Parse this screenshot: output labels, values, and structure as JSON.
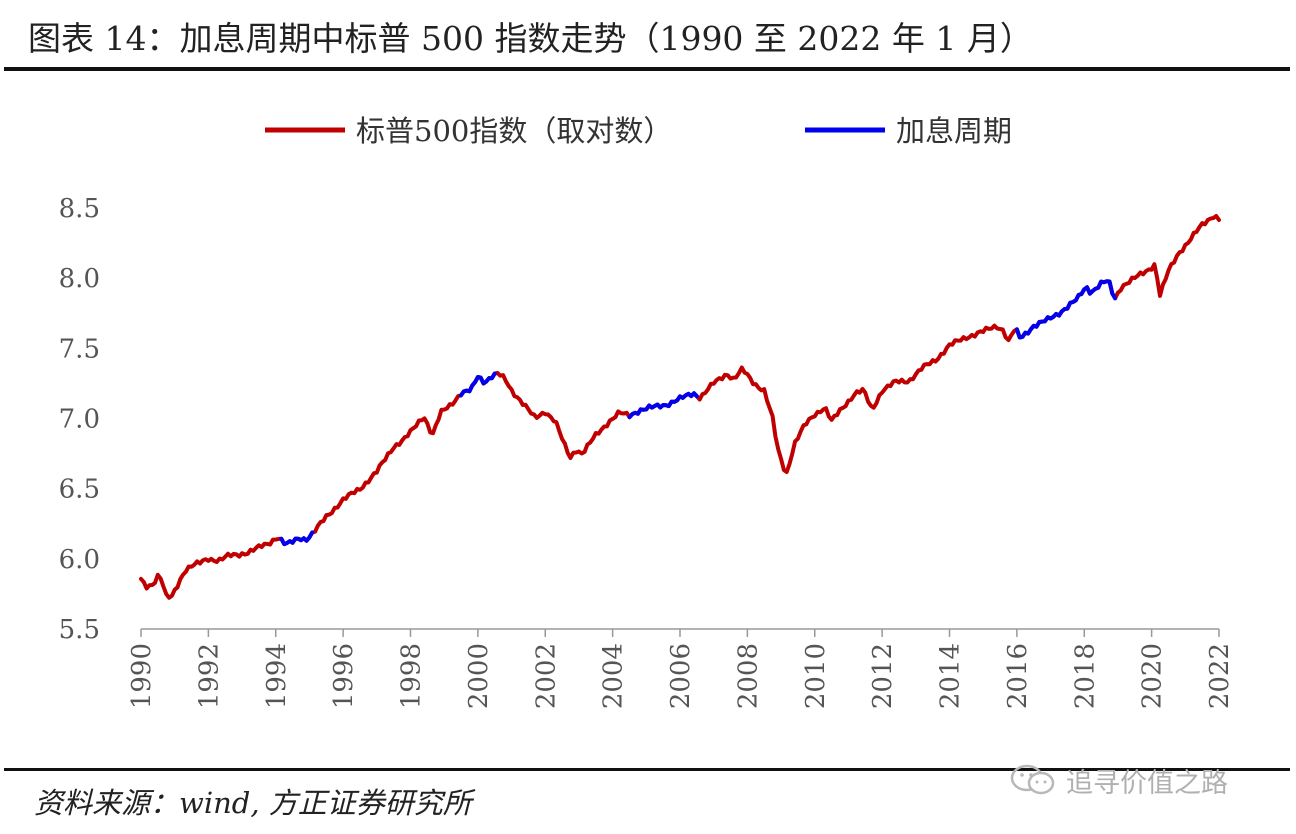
{
  "title": "图表 14：加息周期中标普 500 指数走势（1990 至 2022 年 1 月）",
  "source": "资料来源：wind, 方正证券研究所",
  "watermark": "追寻价值之路",
  "chart_data": {
    "type": "line",
    "legend_position": "top-center",
    "grid": false,
    "ylim": [
      5.5,
      8.5
    ],
    "yticks": [
      "5.5",
      "6.0",
      "6.5",
      "7.0",
      "7.5",
      "8.0",
      "8.5"
    ],
    "xlim": [
      1990,
      2022
    ],
    "xticks": [
      "1990",
      "1992",
      "1994",
      "1996",
      "1998",
      "2000",
      "2002",
      "2004",
      "2006",
      "2008",
      "2010",
      "2012",
      "2014",
      "2016",
      "2018",
      "2020",
      "2022"
    ],
    "series": [
      {
        "name": "标普500指数（取对数）",
        "color": "#c00000"
      },
      {
        "name": "加息周期",
        "color": "#0000ee"
      }
    ],
    "hike_periods": [
      [
        1994.1,
        1995.1
      ],
      [
        1999.5,
        2000.5
      ],
      [
        2004.5,
        2006.5
      ],
      [
        2015.95,
        2018.95
      ]
    ],
    "points": [
      [
        1990.0,
        5.85
      ],
      [
        1990.15,
        5.8
      ],
      [
        1990.35,
        5.82
      ],
      [
        1990.5,
        5.88
      ],
      [
        1990.6,
        5.86
      ],
      [
        1990.75,
        5.73
      ],
      [
        1990.9,
        5.72
      ],
      [
        1991.1,
        5.82
      ],
      [
        1991.3,
        5.92
      ],
      [
        1991.5,
        5.95
      ],
      [
        1991.75,
        5.97
      ],
      [
        1992.0,
        6.0
      ],
      [
        1992.3,
        5.99
      ],
      [
        1992.6,
        6.02
      ],
      [
        1992.9,
        6.03
      ],
      [
        1993.2,
        6.05
      ],
      [
        1993.5,
        6.08
      ],
      [
        1993.8,
        6.11
      ],
      [
        1994.05,
        6.16
      ],
      [
        1994.3,
        6.1
      ],
      [
        1994.5,
        6.12
      ],
      [
        1994.7,
        6.15
      ],
      [
        1994.9,
        6.14
      ],
      [
        1995.1,
        6.18
      ],
      [
        1995.5,
        6.3
      ],
      [
        1996.0,
        6.42
      ],
      [
        1996.5,
        6.5
      ],
      [
        1997.0,
        6.62
      ],
      [
        1997.5,
        6.8
      ],
      [
        1997.8,
        6.85
      ],
      [
        1998.0,
        6.9
      ],
      [
        1998.4,
        7.02
      ],
      [
        1998.65,
        6.88
      ],
      [
        1998.9,
        7.04
      ],
      [
        1999.2,
        7.1
      ],
      [
        1999.5,
        7.18
      ],
      [
        1999.8,
        7.2
      ],
      [
        2000.0,
        7.3
      ],
      [
        2000.2,
        7.26
      ],
      [
        2000.4,
        7.3
      ],
      [
        2000.6,
        7.32
      ],
      [
        2000.8,
        7.28
      ],
      [
        2001.0,
        7.2
      ],
      [
        2001.3,
        7.12
      ],
      [
        2001.7,
        7.0
      ],
      [
        2002.0,
        7.05
      ],
      [
        2002.3,
        6.98
      ],
      [
        2002.55,
        6.82
      ],
      [
        2002.75,
        6.72
      ],
      [
        2002.9,
        6.78
      ],
      [
        2003.1,
        6.75
      ],
      [
        2003.5,
        6.88
      ],
      [
        2003.9,
        6.98
      ],
      [
        2004.2,
        7.04
      ],
      [
        2004.5,
        7.02
      ],
      [
        2004.8,
        7.06
      ],
      [
        2005.2,
        7.08
      ],
      [
        2005.6,
        7.1
      ],
      [
        2006.0,
        7.14
      ],
      [
        2006.4,
        7.18
      ],
      [
        2006.6,
        7.15
      ],
      [
        2007.0,
        7.25
      ],
      [
        2007.4,
        7.32
      ],
      [
        2007.6,
        7.28
      ],
      [
        2007.85,
        7.35
      ],
      [
        2008.2,
        7.25
      ],
      [
        2008.5,
        7.2
      ],
      [
        2008.75,
        7.0
      ],
      [
        2008.9,
        6.78
      ],
      [
        2009.15,
        6.6
      ],
      [
        2009.4,
        6.82
      ],
      [
        2009.7,
        6.95
      ],
      [
        2010.0,
        7.03
      ],
      [
        2010.3,
        7.08
      ],
      [
        2010.5,
        6.98
      ],
      [
        2010.8,
        7.07
      ],
      [
        2011.2,
        7.18
      ],
      [
        2011.45,
        7.2
      ],
      [
        2011.7,
        7.06
      ],
      [
        2012.0,
        7.2
      ],
      [
        2012.4,
        7.26
      ],
      [
        2012.8,
        7.27
      ],
      [
        2013.2,
        7.36
      ],
      [
        2013.6,
        7.42
      ],
      [
        2014.0,
        7.52
      ],
      [
        2014.5,
        7.58
      ],
      [
        2015.0,
        7.62
      ],
      [
        2015.4,
        7.66
      ],
      [
        2015.6,
        7.63
      ],
      [
        2015.75,
        7.55
      ],
      [
        2015.95,
        7.64
      ],
      [
        2016.1,
        7.57
      ],
      [
        2016.5,
        7.66
      ],
      [
        2016.9,
        7.7
      ],
      [
        2017.3,
        7.76
      ],
      [
        2017.8,
        7.85
      ],
      [
        2018.05,
        7.94
      ],
      [
        2018.2,
        7.9
      ],
      [
        2018.5,
        7.96
      ],
      [
        2018.72,
        7.98
      ],
      [
        2018.9,
        7.85
      ],
      [
        2019.1,
        7.94
      ],
      [
        2019.5,
        8.0
      ],
      [
        2019.9,
        8.06
      ],
      [
        2020.1,
        8.1
      ],
      [
        2020.25,
        7.88
      ],
      [
        2020.5,
        8.05
      ],
      [
        2020.8,
        8.18
      ],
      [
        2021.1,
        8.26
      ],
      [
        2021.5,
        8.38
      ],
      [
        2021.85,
        8.45
      ],
      [
        2022.0,
        8.42
      ]
    ]
  }
}
